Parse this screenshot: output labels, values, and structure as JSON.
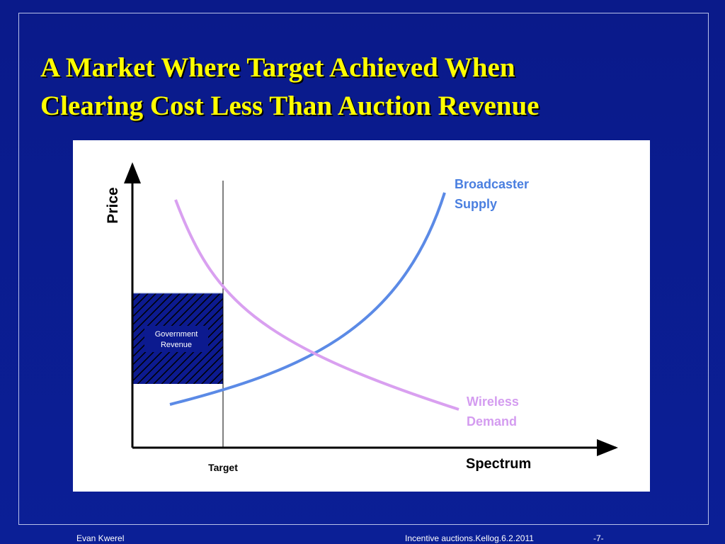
{
  "header": {
    "title": [
      "A Market Where Target Achieved When",
      "Clearing Cost Less Than Auction Revenue"
    ]
  },
  "diagram": {
    "y_axis_label": "Price",
    "x_axis_label": "Spectrum",
    "supply_label": [
      "Broadcaster",
      "Supply"
    ],
    "demand_label": [
      "Wireless",
      "Demand"
    ],
    "revenue_label": [
      "Government",
      "Revenue"
    ],
    "target_label": "Target"
  },
  "footer": {
    "author": "Evan Kwerel",
    "file": "Incentive auctions.Kellog.6.2.2011",
    "page": "-7-"
  }
}
